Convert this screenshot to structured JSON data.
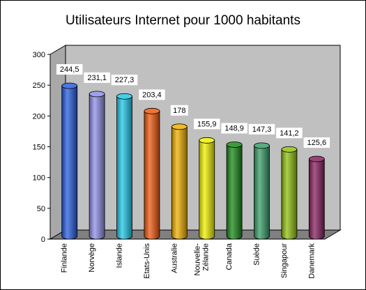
{
  "chart_data": {
    "type": "bar",
    "style": "3d-cylinder",
    "title": "Utilisateurs Internet pour 1000 habitants",
    "xlabel": "",
    "ylabel": "",
    "ylim": [
      0,
      300
    ],
    "yticks": [
      0,
      50,
      100,
      150,
      200,
      250,
      300
    ],
    "grid": false,
    "legend": "none",
    "categories": [
      [
        "Finlande"
      ],
      [
        "Norvège"
      ],
      [
        "Islande"
      ],
      [
        "Etats-Unis"
      ],
      [
        "Australie"
      ],
      [
        "Nouvelle-",
        "Zélande"
      ],
      [
        "Canada"
      ],
      [
        "Suède"
      ],
      [
        "Singapour"
      ],
      [
        "Danemark"
      ]
    ],
    "values": [
      244.5,
      231.1,
      227.3,
      203.4,
      178,
      155.9,
      148.9,
      147.3,
      141.2,
      125.6
    ],
    "data_labels": [
      "244,5",
      "231,1",
      "227,3",
      "203,4",
      "178",
      "155,9",
      "148,9",
      "147,3",
      "141,2",
      "125,6"
    ],
    "colors": [
      "#2a5fe0",
      "#8f8fe8",
      "#20c8e8",
      "#f05a10",
      "#f0b000",
      "#f0f000",
      "#1a8a1a",
      "#3a9e6a",
      "#90c010",
      "#8a2060"
    ],
    "wall_color": "#c0c0c0",
    "floor_color": "#808080"
  }
}
